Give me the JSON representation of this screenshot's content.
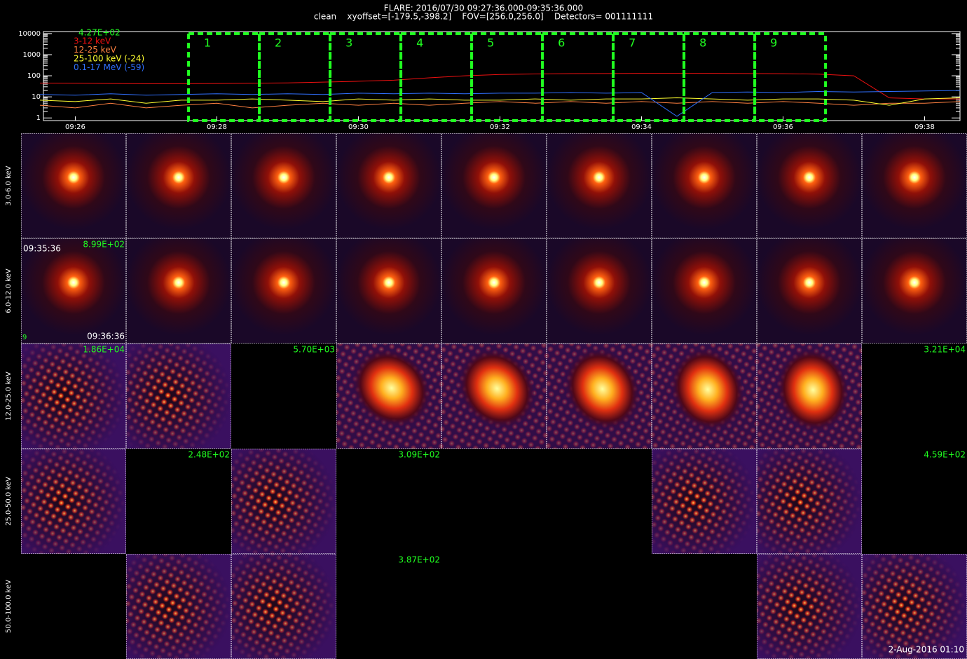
{
  "header": {
    "line1": "FLARE: 2016/07/30 09:27:36.000-09:35:36.000",
    "line2": "clean    xyoffset=[-179.5,-398.2]    FOV=[256.0,256.0]    Detectors= 001111111"
  },
  "chart_data": {
    "type": "line",
    "log_y": true,
    "annotation": "4.27E+02",
    "x": [
      25.5,
      26,
      26.5,
      27,
      27.5,
      28,
      28.5,
      29,
      29.5,
      30,
      30.5,
      31,
      31.5,
      32,
      32.5,
      33,
      33.5,
      34,
      34.5,
      35,
      35.5,
      36,
      36.5,
      37,
      37.5,
      38,
      38.5
    ],
    "xlim": [
      25.55,
      38.5
    ],
    "xticks": [
      {
        "value": 26,
        "label": "09:26"
      },
      {
        "value": 28,
        "label": "09:28"
      },
      {
        "value": 30,
        "label": "09:30"
      },
      {
        "value": 32,
        "label": "09:32"
      },
      {
        "value": 34,
        "label": "09:34"
      },
      {
        "value": 36,
        "label": "09:36"
      },
      {
        "value": 38,
        "label": "09:38"
      }
    ],
    "ylim": [
      0.75,
      12500
    ],
    "yticks": [
      1,
      10,
      100,
      1000,
      10000
    ],
    "series": [
      {
        "name": "3-12 keV",
        "color": "#ee1010",
        "values": [
          45,
          44,
          43,
          42,
          42,
          43,
          44,
          46,
          50,
          55,
          62,
          80,
          100,
          115,
          122,
          126,
          128,
          130,
          130,
          130,
          128,
          125,
          120,
          100,
          9,
          8,
          8
        ]
      },
      {
        "name": "12-25 keV",
        "color": "#ff8040",
        "values": [
          4,
          3,
          5,
          3,
          4,
          5,
          3,
          4,
          5,
          4,
          5,
          4,
          5,
          6,
          5,
          6,
          5,
          6,
          5,
          6,
          5,
          6,
          5,
          4,
          5,
          5,
          6
        ]
      },
      {
        "name": "25-100 keV (-24)",
        "color": "#ffff30",
        "values": [
          7,
          6,
          8,
          5,
          7,
          7,
          8,
          7,
          6,
          8,
          7,
          8,
          7,
          7,
          8,
          7,
          8,
          8,
          9,
          8,
          7,
          8,
          8,
          7,
          4,
          8,
          9
        ]
      },
      {
        "name": "0.1-17 MeV (-59)",
        "color": "#3070ff",
        "values": [
          13,
          12,
          14,
          12,
          13,
          14,
          13,
          14,
          13,
          15,
          14,
          15,
          14,
          15,
          15,
          16,
          15,
          16,
          1.2,
          16,
          17,
          16,
          18,
          17,
          18,
          19,
          20
        ]
      }
    ],
    "intervals": [
      {
        "label": "1",
        "start": 27.6,
        "end": 28.6
      },
      {
        "label": "2",
        "start": 28.6,
        "end": 29.6
      },
      {
        "label": "3",
        "start": 29.6,
        "end": 30.6
      },
      {
        "label": "4",
        "start": 30.6,
        "end": 31.6
      },
      {
        "label": "5",
        "start": 31.6,
        "end": 32.6
      },
      {
        "label": "6",
        "start": 32.6,
        "end": 33.6
      },
      {
        "label": "7",
        "start": 33.6,
        "end": 34.6
      },
      {
        "label": "8",
        "start": 34.6,
        "end": 35.6
      },
      {
        "label": "9",
        "start": 35.6,
        "end": 36.6
      }
    ],
    "interval_color": "#20ff20"
  },
  "grid": {
    "rows": [
      {
        "energy": "3.0-6.0 keV",
        "cells": [
          {
            "type": "compact"
          },
          {
            "type": "compact"
          },
          {
            "type": "compact"
          },
          {
            "type": "compact"
          },
          {
            "type": "compact"
          },
          {
            "type": "compact"
          },
          {
            "type": "compact"
          },
          {
            "type": "compact"
          },
          {
            "type": "compact"
          }
        ]
      },
      {
        "energy": "6.0-12.0 keV",
        "cells": [
          {
            "type": "compact",
            "label": "8.99E+02",
            "start": "09:35:36",
            "end": "09:36:36",
            "index": "9"
          },
          {
            "type": "compact"
          },
          {
            "type": "compact"
          },
          {
            "type": "compact"
          },
          {
            "type": "compact"
          },
          {
            "type": "compact"
          },
          {
            "type": "compact"
          },
          {
            "type": "compact"
          },
          {
            "type": "compact"
          }
        ]
      },
      {
        "energy": "12.0-25.0 keV",
        "cells": [
          {
            "type": "noise",
            "label": "1.86E+04"
          },
          {
            "type": "noise"
          },
          {
            "type": "empty",
            "label": "5.70E+03"
          },
          {
            "type": "extended"
          },
          {
            "type": "extended"
          },
          {
            "type": "extended"
          },
          {
            "type": "extended"
          },
          {
            "type": "extended"
          },
          {
            "type": "empty",
            "label": "3.21E+04"
          }
        ]
      },
      {
        "energy": "25.0-50.0 keV",
        "cells": [
          {
            "type": "noise"
          },
          {
            "type": "empty",
            "label": "2.48E+02"
          },
          {
            "type": "noise"
          },
          {
            "type": "empty",
            "label": "3.09E+02"
          },
          {
            "type": "empty"
          },
          {
            "type": "empty"
          },
          {
            "type": "noise"
          },
          {
            "type": "noise"
          },
          {
            "type": "empty",
            "label": "4.59E+02"
          }
        ]
      },
      {
        "energy": "50.0-100.0 keV",
        "cells": [
          {
            "type": "empty"
          },
          {
            "type": "noise"
          },
          {
            "type": "noise"
          },
          {
            "type": "empty",
            "label": "3.87E+02"
          },
          {
            "type": "empty"
          },
          {
            "type": "empty"
          },
          {
            "type": "empty"
          },
          {
            "type": "noise"
          },
          {
            "type": "noise"
          }
        ]
      }
    ]
  },
  "footer": "2-Aug-2016 01:10"
}
